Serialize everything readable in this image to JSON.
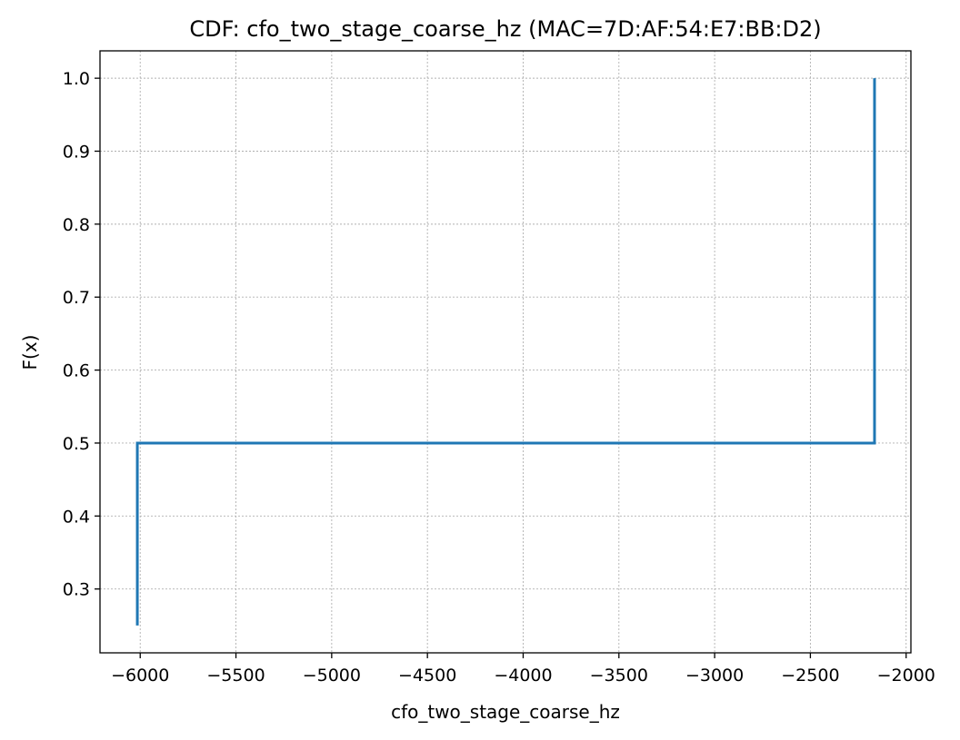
{
  "chart_data": {
    "type": "line",
    "title": "CDF: cfo_two_stage_coarse_hz (MAC=7D:AF:54:E7:BB:D2)",
    "xlabel": "cfo_two_stage_coarse_hz",
    "ylabel": "F(x)",
    "xlim": [
      -6210,
      -1975
    ],
    "ylim": [
      0.2125,
      1.0375
    ],
    "xticks": [
      -6000,
      -5500,
      -5000,
      -4500,
      -4000,
      -3500,
      -3000,
      -2500,
      -2000
    ],
    "xtick_labels": [
      "−6000",
      "−5500",
      "−5000",
      "−4500",
      "−4000",
      "−3500",
      "−3000",
      "−2500",
      "−2000"
    ],
    "yticks": [
      0.3,
      0.4,
      0.5,
      0.6,
      0.7,
      0.8,
      0.9,
      1.0
    ],
    "ytick_labels": [
      "0.3",
      "0.4",
      "0.5",
      "0.6",
      "0.7",
      "0.8",
      "0.9",
      "1.0"
    ],
    "grid": true,
    "series": [
      {
        "color": "#1f77b4",
        "step": true,
        "x": [
          -6015,
          -6015,
          -2165,
          -2165
        ],
        "y": [
          0.25,
          0.5,
          0.5,
          1.0
        ]
      }
    ]
  }
}
